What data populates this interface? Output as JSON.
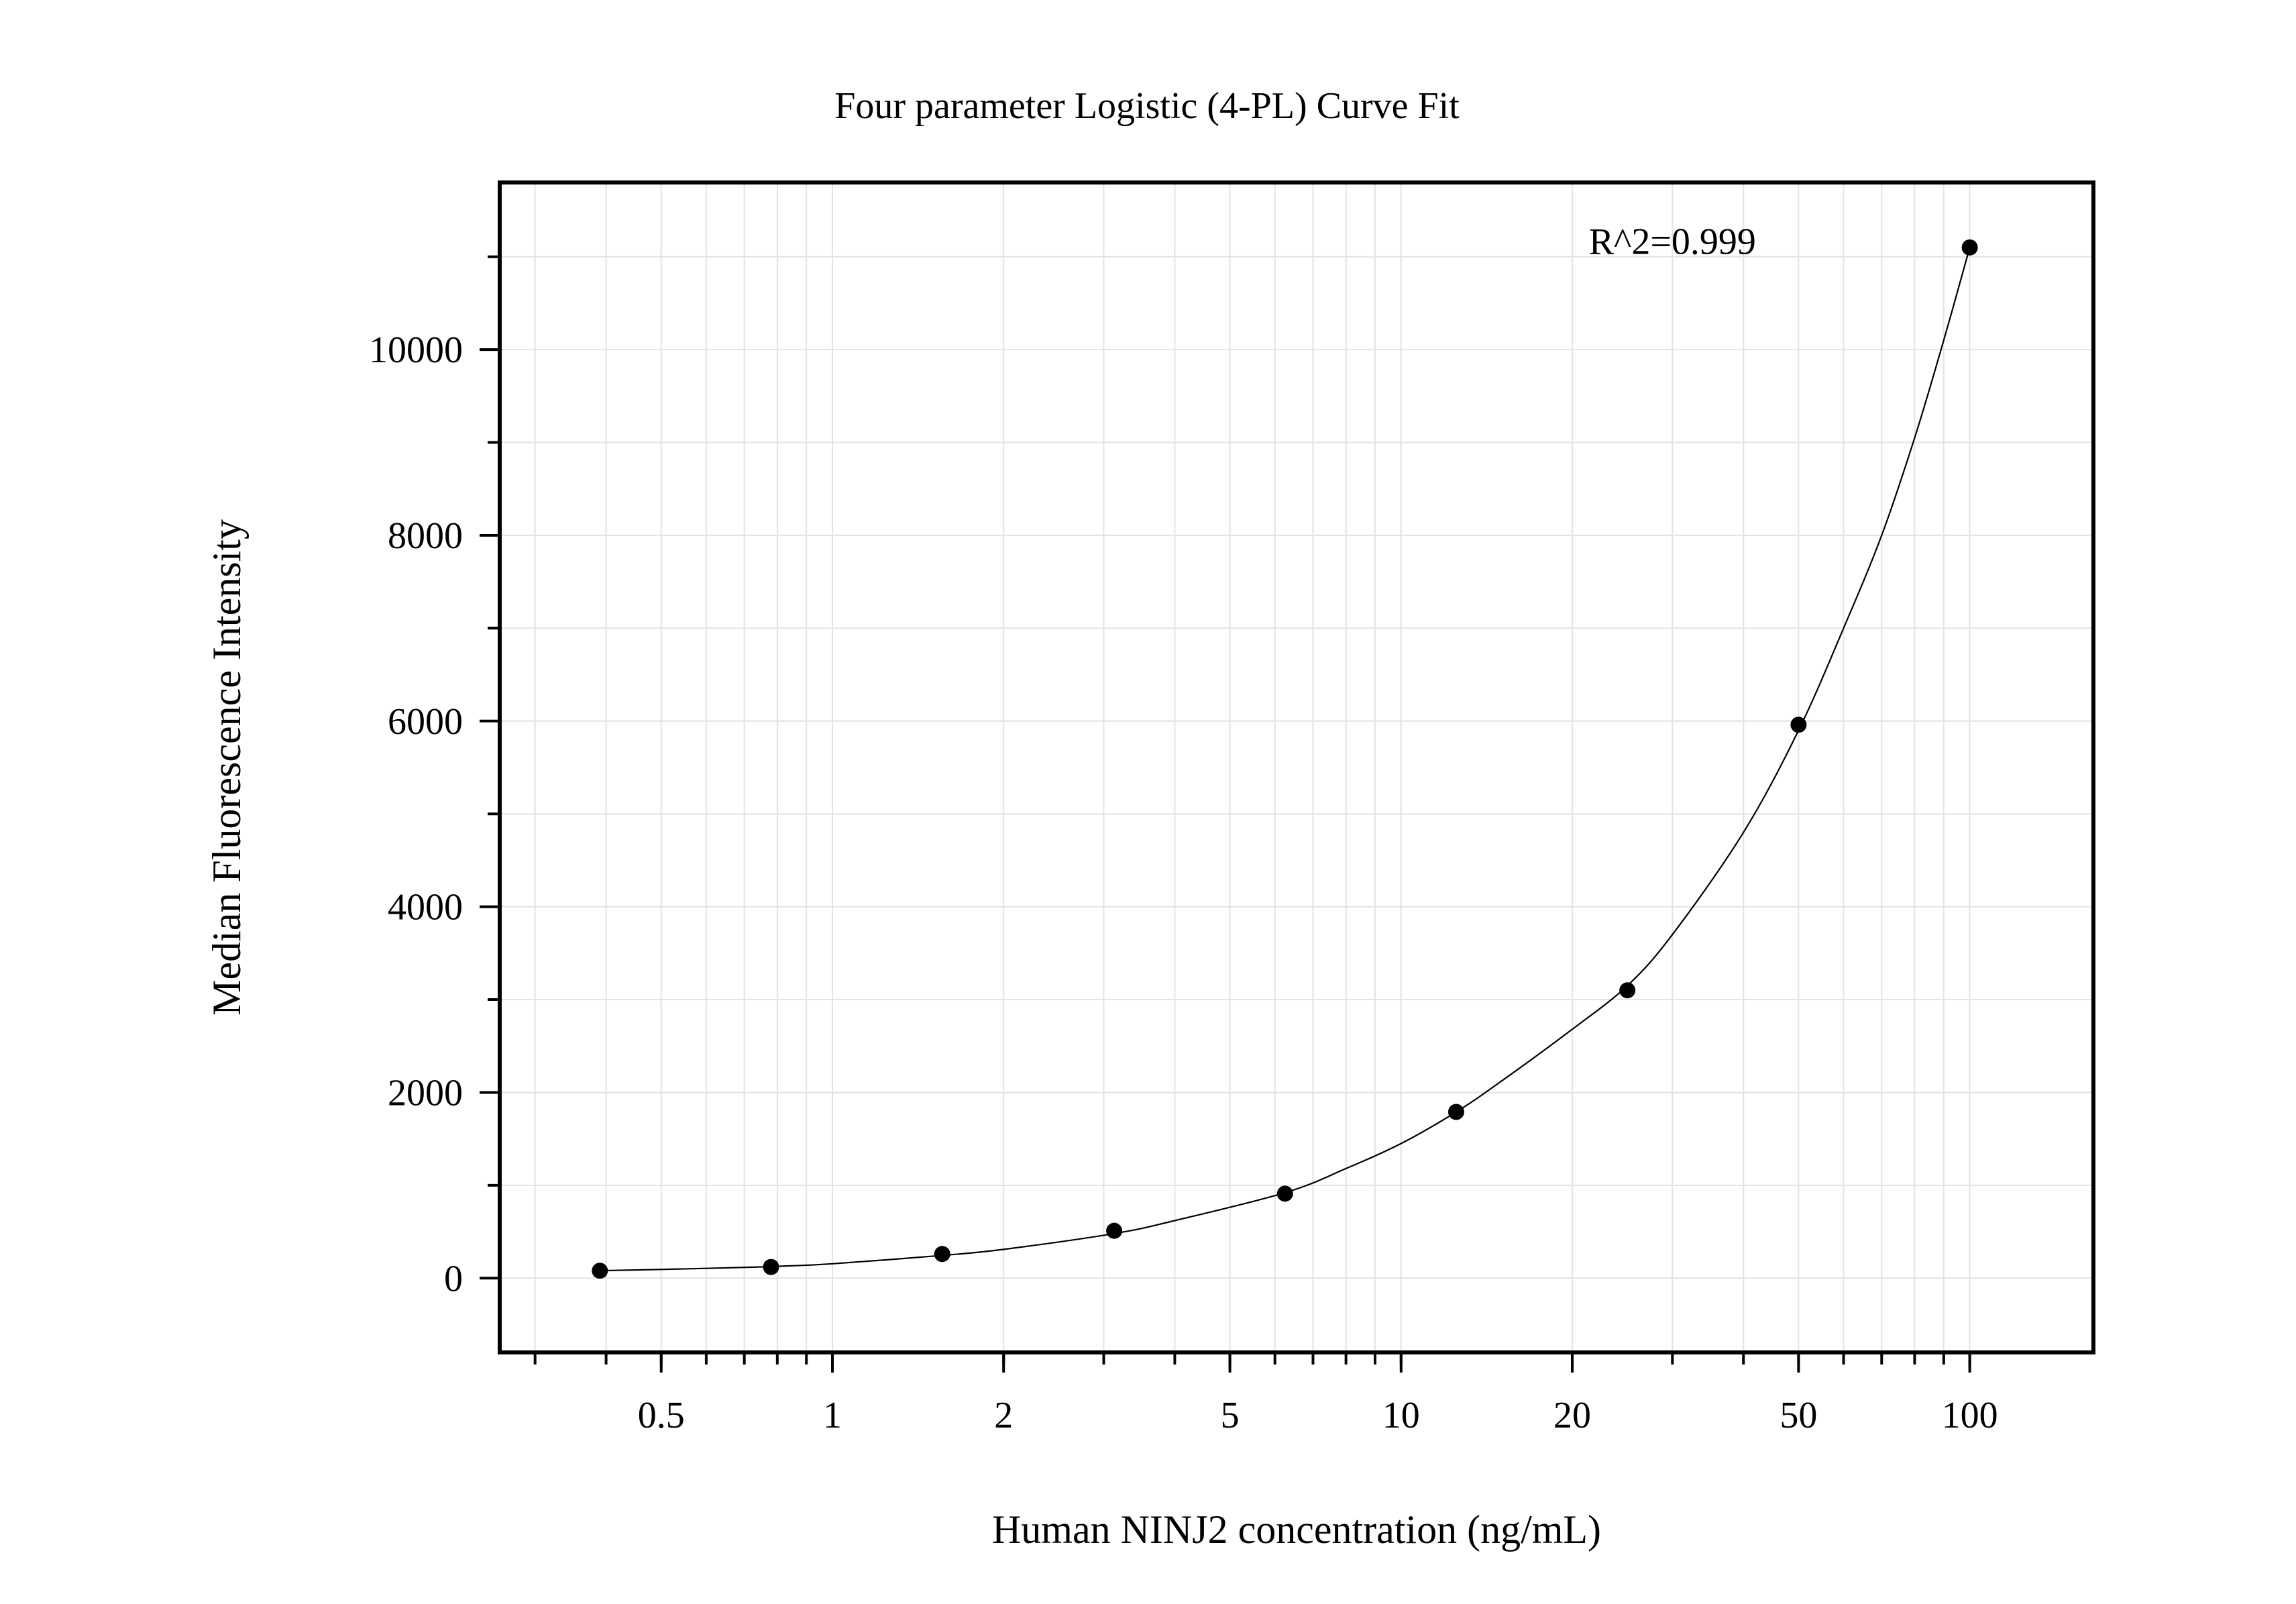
{
  "chart_data": {
    "type": "scatter",
    "title": "Four parameter Logistic (4-PL) Curve Fit",
    "xlabel": "Human NINJ2 concentration (ng/mL)",
    "ylabel": "Median Fluorescence Intensity",
    "x_scale": "log",
    "xlim": [
      0.26,
      165
    ],
    "ylim": [
      -800,
      11800
    ],
    "x_ticks": [
      {
        "value": 0.5,
        "label": "0.5"
      },
      {
        "value": 1,
        "label": "1"
      },
      {
        "value": 2,
        "label": "2"
      },
      {
        "value": 5,
        "label": "5"
      },
      {
        "value": 10,
        "label": "10"
      },
      {
        "value": 20,
        "label": "20"
      },
      {
        "value": 50,
        "label": "50"
      },
      {
        "value": 100,
        "label": "100"
      }
    ],
    "y_ticks": [
      {
        "value": 0,
        "label": "0"
      },
      {
        "value": 2000,
        "label": "2000"
      },
      {
        "value": 4000,
        "label": "4000"
      },
      {
        "value": 6000,
        "label": "6000"
      },
      {
        "value": 8000,
        "label": "8000"
      },
      {
        "value": 10000,
        "label": "10000"
      }
    ],
    "y_minor_ticks": [
      1000,
      3000,
      5000,
      7000,
      9000,
      11000
    ],
    "grid": true,
    "series": [
      {
        "name": "Standards",
        "x": [
          0.39,
          0.78,
          1.56,
          3.13,
          6.25,
          12.5,
          25,
          50,
          100
        ],
        "y": [
          80,
          120,
          260,
          510,
          910,
          1790,
          3100,
          5960,
          11100
        ]
      }
    ],
    "fit_curve": {
      "name": "4-PL fit",
      "x": [
        0.39,
        0.6,
        0.78,
        1.0,
        1.56,
        2.0,
        3.13,
        4.0,
        6.25,
        8.0,
        10,
        12.5,
        15,
        20,
        25,
        30,
        40,
        50,
        60,
        70,
        80,
        90,
        100
      ],
      "y": [
        80,
        105,
        125,
        155,
        245,
        310,
        480,
        620,
        920,
        1180,
        1450,
        1790,
        2120,
        2680,
        3150,
        3700,
        4800,
        5900,
        7000,
        8000,
        9050,
        10100,
        11100
      ]
    },
    "annotations": [
      {
        "text": "R^2=0.999",
        "x": 30,
        "y": 11030
      }
    ]
  }
}
